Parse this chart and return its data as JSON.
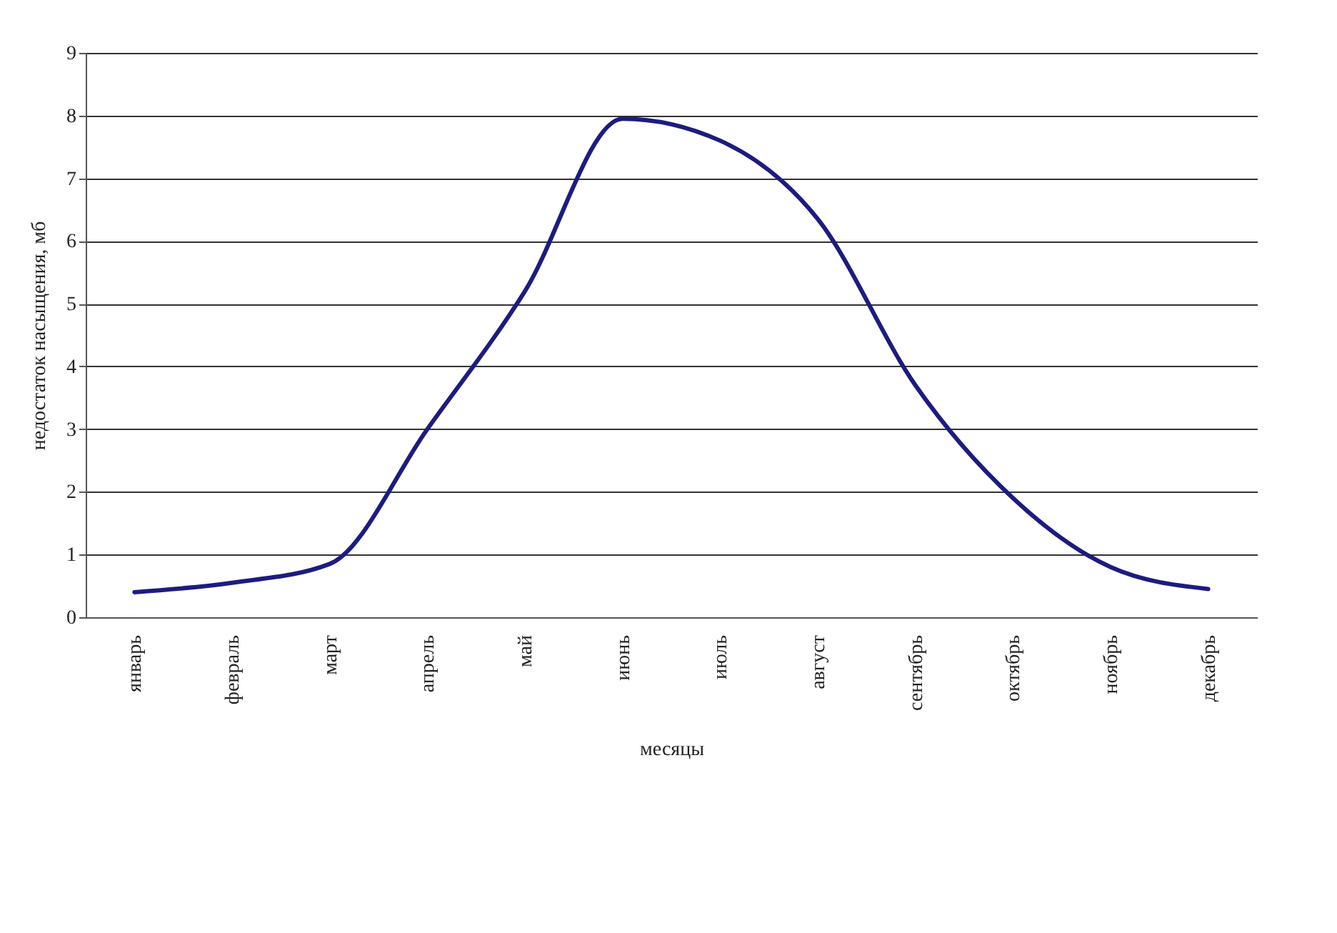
{
  "chart_data": {
    "type": "line",
    "xlabel": "месяцы",
    "ylabel": "недостаток насыщения, мб",
    "categories": [
      "январь",
      "февраль",
      "март",
      "апрель",
      "май",
      "июнь",
      "июль",
      "август",
      "сентябрь",
      "октябрь",
      "ноябрь",
      "декабрь"
    ],
    "series": [
      {
        "color": "#1c1c80",
        "values": [
          0.4,
          0.55,
          0.85,
          3.0,
          5.2,
          7.95,
          7.6,
          6.35,
          3.7,
          1.9,
          0.8,
          0.45
        ]
      }
    ],
    "ylim": [
      0,
      9
    ],
    "yticks": [
      0,
      1,
      2,
      3,
      4,
      5,
      6,
      7,
      8,
      9
    ],
    "grid": "y",
    "line_style": "solid"
  }
}
